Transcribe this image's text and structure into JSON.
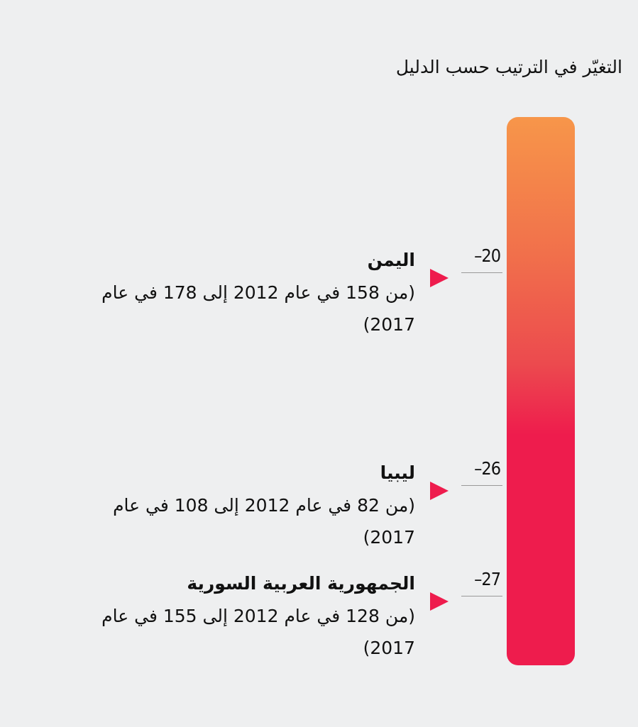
{
  "title": "التغيّر في الترتيب حسب الدليل",
  "items": [
    {
      "name": "اليمن",
      "detail": "(من 158 في عام 2012 إلى 178 في عام 2017)",
      "change": "–20"
    },
    {
      "name": "ليبيا",
      "detail": "(من 82 في عام 2012 إلى 108 في عام 2017)",
      "change": "–26"
    },
    {
      "name": "الجمهورية العربية السورية",
      "detail": "(من 128 في عام 2012 إلى 155 في عام 2017)",
      "change": "–27"
    }
  ]
}
